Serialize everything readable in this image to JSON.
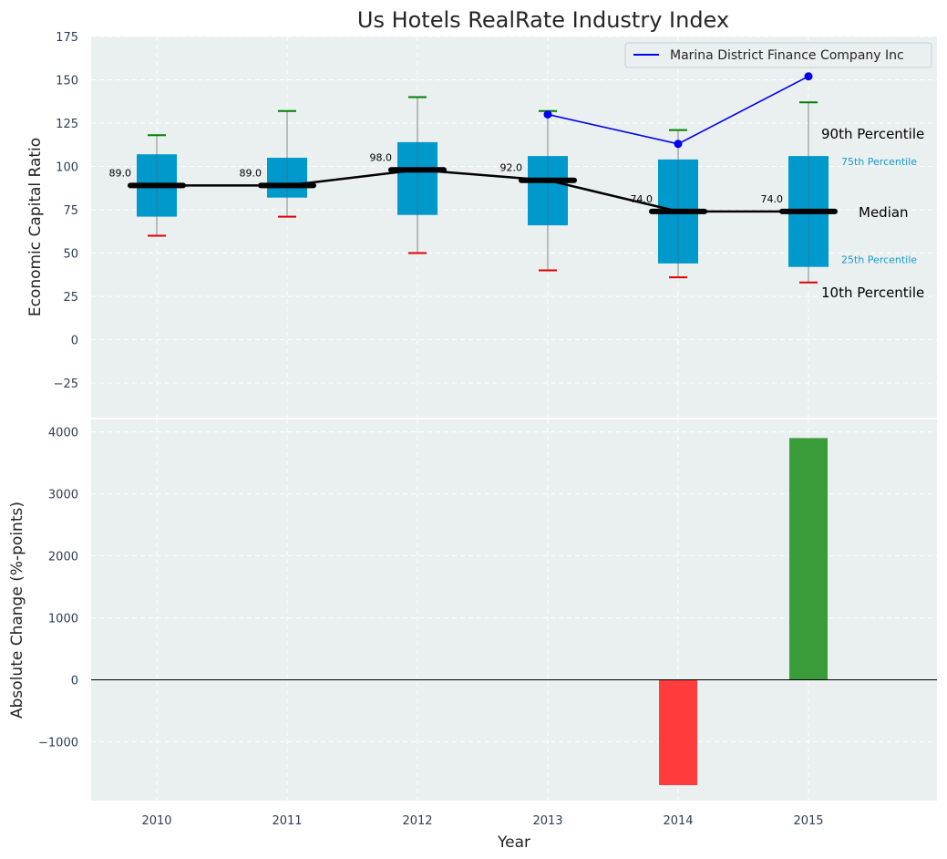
{
  "chart_data": {
    "type": "box",
    "title": "Us Hotels RealRate Industry Index",
    "xlabel": "Year",
    "categories": [
      "2010",
      "2011",
      "2012",
      "2013",
      "2014",
      "2015"
    ],
    "top_panel": {
      "ylabel": "Economic Capital Ratio",
      "ylim": [
        -45,
        175
      ],
      "yticks": [
        -25,
        0,
        25,
        50,
        75,
        100,
        125,
        150,
        175
      ],
      "tick_labels": [
        "−25",
        "0",
        "25",
        "50",
        "75",
        "100",
        "125",
        "150",
        "175"
      ],
      "grid": true,
      "boxes": [
        {
          "year": "2010",
          "p10": 60,
          "p25": 71,
          "median": 89,
          "p75": 107,
          "p90": 118
        },
        {
          "year": "2011",
          "p10": 71,
          "p25": 82,
          "median": 89,
          "p75": 105,
          "p90": 132
        },
        {
          "year": "2012",
          "p10": 50,
          "p25": 72,
          "median": 98,
          "p75": 114,
          "p90": 140
        },
        {
          "year": "2013",
          "p10": 40,
          "p25": 66,
          "median": 92,
          "p75": 106,
          "p90": 132
        },
        {
          "year": "2014",
          "p10": 36,
          "p25": 44,
          "median": 74,
          "p75": 104,
          "p90": 121
        },
        {
          "year": "2015",
          "p10": 33,
          "p25": 42,
          "median": 74,
          "p75": 106,
          "p90": 137
        }
      ],
      "median_labels": [
        "89.0",
        "89.0",
        "98.0",
        "92.0",
        "74.0",
        "74.0"
      ],
      "company_series": {
        "name": "Marina District Finance Company Inc",
        "x": [
          "2013",
          "2014",
          "2015"
        ],
        "values": [
          130,
          113,
          152
        ],
        "color": "#0000ee"
      },
      "percentile_annotations": {
        "p90": "90th Percentile",
        "p75": "75th Percentile",
        "median": "Median",
        "p25": "25th Percentile",
        "p10": "10th Percentile"
      },
      "legend_position": "top-right"
    },
    "bottom_panel": {
      "type": "bar",
      "ylabel": "Absolute Change (%-points)",
      "ylim": [
        -1950,
        4200
      ],
      "yticks": [
        -1000,
        0,
        1000,
        2000,
        3000,
        4000
      ],
      "tick_labels": [
        "−1000",
        "0",
        "1000",
        "2000",
        "3000",
        "4000"
      ],
      "grid": true,
      "values": [
        {
          "year": "2014",
          "value": -1700
        },
        {
          "year": "2015",
          "value": 3900
        }
      ]
    },
    "colors": {
      "box": "#0099cc",
      "median": "#000000",
      "p90_cap": "#008000",
      "p10_cap": "#e00000",
      "positive_bar": "#3a9d3a",
      "negative_bar": "#ff3b3b",
      "panel_bg": "#eaeff0"
    }
  }
}
